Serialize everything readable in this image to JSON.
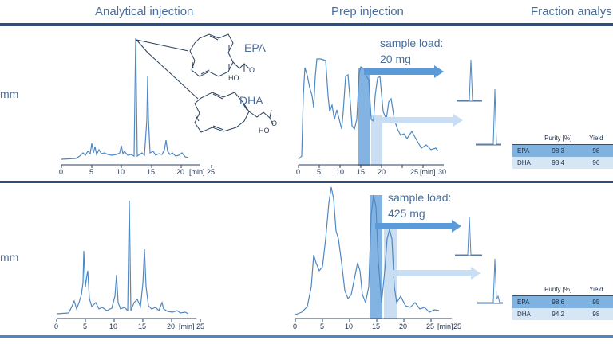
{
  "headers": {
    "analytical": "Analytical injection",
    "prep": "Prep injection",
    "fraction": "Fraction analys"
  },
  "colors": {
    "trace": "#4f88c2",
    "dark_rule": "#2f4f7a",
    "blue_rule": "#4a86c8",
    "band": "#5a9ad8",
    "light_band": "#c9def2"
  },
  "row1": {
    "label": "mm",
    "compound_labels": {
      "epa": "EPA",
      "dha": "DHA"
    },
    "analytical_axis": {
      "ticks": [
        "0",
        "5",
        "10",
        "15",
        "20",
        "25"
      ],
      "unit": "[min]"
    },
    "prep_axis": {
      "ticks": [
        "0",
        "5",
        "10",
        "15",
        "20",
        "25",
        "30"
      ],
      "unit": "[min]"
    },
    "sample_load": {
      "label": "sample load:",
      "value": "20 mg"
    },
    "table": {
      "headers": [
        "",
        "Purity [%]",
        "Yield"
      ],
      "rows": [
        {
          "name": "EPA",
          "purity": "98.3",
          "yield": "98"
        },
        {
          "name": "DHA",
          "purity": "93.4",
          "yield": "96"
        }
      ]
    }
  },
  "row2": {
    "label": "mm",
    "analytical_axis": {
      "ticks": [
        "0",
        "5",
        "10",
        "15",
        "20",
        "25"
      ],
      "unit": "[min]"
    },
    "prep_axis": {
      "ticks": [
        "0",
        "5",
        "10",
        "15",
        "20",
        "25"
      ],
      "unit": "[min]"
    },
    "sample_load": {
      "label": "sample load:",
      "value": "425 mg"
    },
    "table": {
      "headers": [
        "",
        "Purity [%]",
        "Yield"
      ],
      "rows": [
        {
          "name": "EPA",
          "purity": "98.6",
          "yield": "95"
        },
        {
          "name": "DHA",
          "purity": "94.2",
          "yield": "98"
        }
      ]
    }
  }
}
